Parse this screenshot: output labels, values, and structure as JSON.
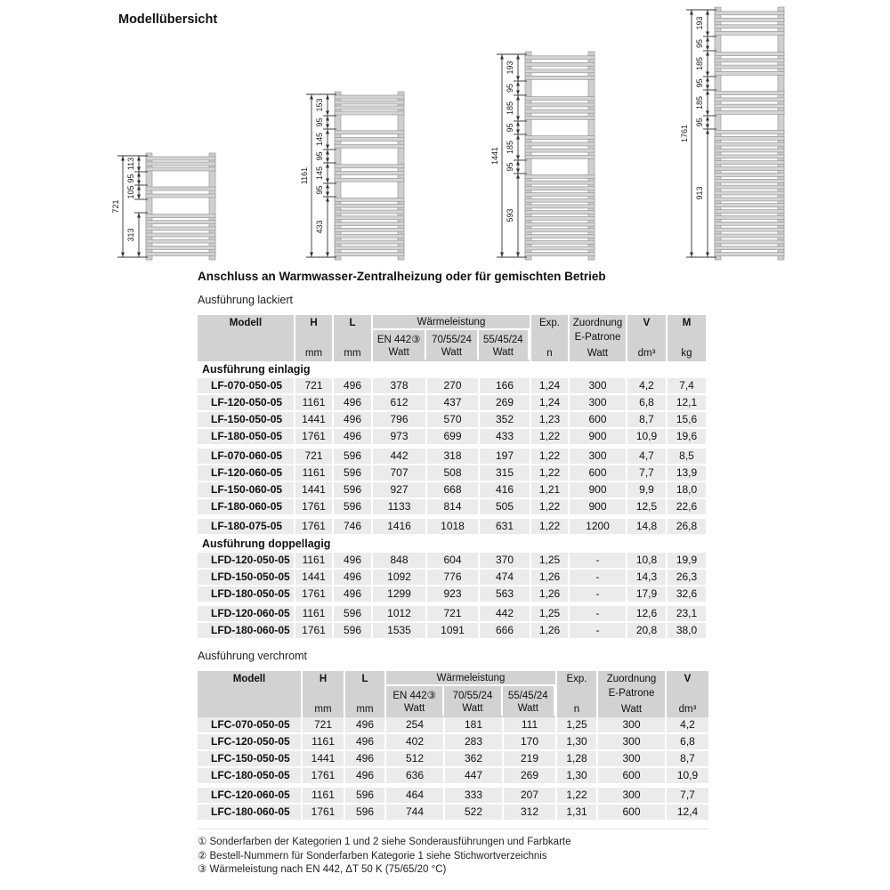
{
  "title": "Modellübersicht",
  "connection_heading": "Anschluss an Warmwasser-Zentralheizung oder für gemischten Betrieb",
  "colors": {
    "header_bg": "#d2d2d2",
    "row_bg": "#ebebeb",
    "text": "#111111"
  },
  "diagrams": [
    {
      "name": "height-721",
      "total_label": "721",
      "total_mm": 721,
      "segments": [
        {
          "mm": 113,
          "type": "bars",
          "label": "113"
        },
        {
          "mm": 95,
          "type": "window",
          "label": "95"
        },
        {
          "mm": 105,
          "type": "bars",
          "label": "105"
        },
        {
          "mm": 95,
          "type": "window",
          "label": ""
        },
        {
          "mm": 313,
          "type": "bars",
          "label": "313"
        }
      ]
    },
    {
      "name": "height-1161",
      "total_label": "1161",
      "total_mm": 1161,
      "segments": [
        {
          "mm": 153,
          "type": "bars",
          "label": "153"
        },
        {
          "mm": 95,
          "type": "window",
          "label": "95"
        },
        {
          "mm": 145,
          "type": "bars",
          "label": "145"
        },
        {
          "mm": 95,
          "type": "window",
          "label": "95"
        },
        {
          "mm": 145,
          "type": "bars",
          "label": "145"
        },
        {
          "mm": 95,
          "type": "window",
          "label": "95"
        },
        {
          "mm": 433,
          "type": "bars",
          "label": "433"
        }
      ]
    },
    {
      "name": "height-1441",
      "total_label": "1441",
      "total_mm": 1441,
      "segments": [
        {
          "mm": 193,
          "type": "bars",
          "label": "193"
        },
        {
          "mm": 95,
          "type": "window",
          "label": "95"
        },
        {
          "mm": 185,
          "type": "bars",
          "label": "185"
        },
        {
          "mm": 95,
          "type": "window",
          "label": "95"
        },
        {
          "mm": 185,
          "type": "bars",
          "label": "185"
        },
        {
          "mm": 95,
          "type": "window",
          "label": "95"
        },
        {
          "mm": 593,
          "type": "bars",
          "label": "593"
        }
      ]
    },
    {
      "name": "height-1761",
      "total_label": "1761",
      "total_mm": 1761,
      "segments": [
        {
          "mm": 193,
          "type": "bars",
          "label": "193"
        },
        {
          "mm": 95,
          "type": "window",
          "label": "95"
        },
        {
          "mm": 185,
          "type": "bars",
          "label": "185"
        },
        {
          "mm": 95,
          "type": "window",
          "label": "95"
        },
        {
          "mm": 185,
          "type": "bars",
          "label": "185"
        },
        {
          "mm": 95,
          "type": "window",
          "label": "95"
        },
        {
          "mm": 913,
          "type": "bars",
          "label": "913"
        }
      ]
    }
  ],
  "tables": [
    {
      "id": "lackiert",
      "label": "Ausführung lackiert",
      "columns": [
        {
          "id": "modell",
          "label": "Modell",
          "unit": "",
          "bold": true
        },
        {
          "id": "h",
          "label": "H",
          "unit": "mm",
          "bold": true
        },
        {
          "id": "l",
          "label": "L",
          "unit": "mm",
          "bold": true
        },
        {
          "id": "waermeleistung",
          "label": "Wärmeleistung",
          "sub": [
            {
              "id": "en442",
              "label": "EN 442③",
              "unit": "Watt"
            },
            {
              "id": "p705524",
              "label": "70/55/24",
              "unit": "Watt"
            },
            {
              "id": "p554524",
              "label": "55/45/24",
              "unit": "Watt"
            }
          ]
        },
        {
          "id": "exp",
          "label": "Exp.",
          "unit": "n"
        },
        {
          "id": "zuordnung",
          "label": "Zuordnung",
          "mid": "E-Patrone",
          "unit": "Watt"
        },
        {
          "id": "v",
          "label": "V",
          "unit": "dm³",
          "bold": true
        },
        {
          "id": "m",
          "label": "M",
          "unit": "kg",
          "bold": true
        }
      ],
      "sections": [
        {
          "label": "Ausführung einlagig",
          "groups": [
            [
              {
                "model": "LF-070-050-05",
                "values": [
                  "721",
                  "496",
                  "378",
                  "270",
                  "166",
                  "1,24",
                  "300",
                  "4,2",
                  "7,4"
                ]
              },
              {
                "model": "LF-120-050-05",
                "values": [
                  "1161",
                  "496",
                  "612",
                  "437",
                  "269",
                  "1,24",
                  "300",
                  "6,8",
                  "12,1"
                ]
              },
              {
                "model": "LF-150-050-05",
                "values": [
                  "1441",
                  "496",
                  "796",
                  "570",
                  "352",
                  "1,23",
                  "600",
                  "8,7",
                  "15,6"
                ]
              },
              {
                "model": "LF-180-050-05",
                "values": [
                  "1761",
                  "496",
                  "973",
                  "699",
                  "433",
                  "1,22",
                  "900",
                  "10,9",
                  "19,6"
                ]
              }
            ],
            [
              {
                "model": "LF-070-060-05",
                "values": [
                  "721",
                  "596",
                  "442",
                  "318",
                  "197",
                  "1,22",
                  "300",
                  "4,7",
                  "8,5"
                ]
              },
              {
                "model": "LF-120-060-05",
                "values": [
                  "1161",
                  "596",
                  "707",
                  "508",
                  "315",
                  "1,22",
                  "600",
                  "7,7",
                  "13,9"
                ]
              },
              {
                "model": "LF-150-060-05",
                "values": [
                  "1441",
                  "596",
                  "927",
                  "668",
                  "416",
                  "1,21",
                  "900",
                  "9,9",
                  "18,0"
                ]
              },
              {
                "model": "LF-180-060-05",
                "values": [
                  "1761",
                  "596",
                  "1133",
                  "814",
                  "505",
                  "1,22",
                  "900",
                  "12,5",
                  "22,6"
                ]
              }
            ],
            [
              {
                "model": "LF-180-075-05",
                "values": [
                  "1761",
                  "746",
                  "1416",
                  "1018",
                  "631",
                  "1,22",
                  "1200",
                  "14,8",
                  "26,8"
                ]
              }
            ]
          ]
        },
        {
          "label": "Ausführung doppellagig",
          "groups": [
            [
              {
                "model": "LFD-120-050-05",
                "values": [
                  "1161",
                  "496",
                  "848",
                  "604",
                  "370",
                  "1,25",
                  "-",
                  "10,8",
                  "19,9"
                ]
              },
              {
                "model": "LFD-150-050-05",
                "values": [
                  "1441",
                  "496",
                  "1092",
                  "776",
                  "474",
                  "1,26",
                  "-",
                  "14,3",
                  "26,3"
                ]
              },
              {
                "model": "LFD-180-050-05",
                "values": [
                  "1761",
                  "496",
                  "1299",
                  "923",
                  "563",
                  "1,26",
                  "-",
                  "17,9",
                  "32,6"
                ]
              }
            ],
            [
              {
                "model": "LFD-120-060-05",
                "values": [
                  "1161",
                  "596",
                  "1012",
                  "721",
                  "442",
                  "1,25",
                  "-",
                  "12,6",
                  "23,1"
                ]
              },
              {
                "model": "LFD-180-060-05",
                "values": [
                  "1761",
                  "596",
                  "1535",
                  "1091",
                  "666",
                  "1,26",
                  "-",
                  "20,8",
                  "38,0"
                ]
              }
            ]
          ]
        }
      ]
    },
    {
      "id": "verchromt",
      "label": "Ausführung verchromt",
      "columns": [
        {
          "id": "modell",
          "label": "Modell",
          "unit": "",
          "bold": true
        },
        {
          "id": "h",
          "label": "H",
          "unit": "mm",
          "bold": true
        },
        {
          "id": "l",
          "label": "L",
          "unit": "mm",
          "bold": true
        },
        {
          "id": "waermeleistung",
          "label": "Wärmeleistung",
          "sub": [
            {
              "id": "en442",
              "label": "EN 442③",
              "unit": "Watt"
            },
            {
              "id": "p705524",
              "label": "70/55/24",
              "unit": "Watt"
            },
            {
              "id": "p554524",
              "label": "55/45/24",
              "unit": "Watt"
            }
          ]
        },
        {
          "id": "exp",
          "label": "Exp.",
          "unit": "n"
        },
        {
          "id": "zuordnung",
          "label": "Zuordnung",
          "mid": "E-Patrone",
          "unit": "Watt"
        },
        {
          "id": "v",
          "label": "V",
          "unit": "dm³",
          "bold": true
        }
      ],
      "sections": [
        {
          "label": "",
          "groups": [
            [
              {
                "model": "LFC-070-050-05",
                "values": [
                  "721",
                  "496",
                  "254",
                  "181",
                  "111",
                  "1,25",
                  "300",
                  "4,2"
                ]
              },
              {
                "model": "LFC-120-050-05",
                "values": [
                  "1161",
                  "496",
                  "402",
                  "283",
                  "170",
                  "1,30",
                  "300",
                  "6,8"
                ]
              },
              {
                "model": "LFC-150-050-05",
                "values": [
                  "1441",
                  "496",
                  "512",
                  "362",
                  "219",
                  "1,28",
                  "300",
                  "8,7"
                ]
              },
              {
                "model": "LFC-180-050-05",
                "values": [
                  "1761",
                  "496",
                  "636",
                  "447",
                  "269",
                  "1,30",
                  "600",
                  "10,9"
                ]
              }
            ],
            [
              {
                "model": "LFC-120-060-05",
                "values": [
                  "1161",
                  "596",
                  "464",
                  "333",
                  "207",
                  "1,22",
                  "300",
                  "7,7"
                ]
              },
              {
                "model": "LFC-180-060-05",
                "values": [
                  "1761",
                  "596",
                  "744",
                  "522",
                  "312",
                  "1,31",
                  "600",
                  "12,4"
                ]
              }
            ]
          ]
        }
      ]
    }
  ],
  "footnotes": [
    "① Sonderfarben der Kategorien 1 und 2 siehe Sonderausführungen und Farbkarte",
    "② Bestell-Nummern für Sonderfarben Kategorie 1 siehe Stichwortverzeichnis",
    "③ Wärmeleistung nach EN 442, ΔT 50 K (75/65/20 °C)"
  ]
}
